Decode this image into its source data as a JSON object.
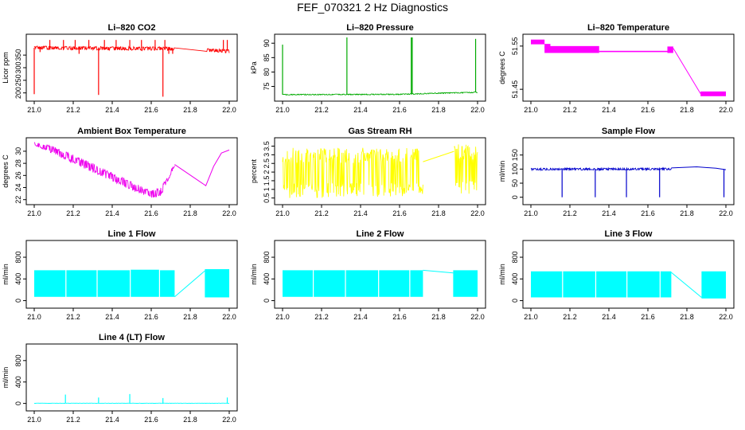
{
  "figure_title": "FEF_070321  2 Hz Diagnostics",
  "chart_data": [
    {
      "type": "line",
      "title": "Li–820 CO2",
      "ylabel": "Licor ppm",
      "xlabel": "",
      "xlim": [
        21.0,
        22.0
      ],
      "ylim": [
        180,
        420
      ],
      "yticks": [
        200,
        250,
        300,
        350
      ],
      "xticks": [
        21.0,
        21.2,
        21.4,
        21.6,
        21.8,
        22.0
      ],
      "color": "#ff0000",
      "band": [
        [
          21.0,
          372,
          386
        ],
        [
          21.72,
          368,
          382
        ],
        [
          22.0,
          358,
          372
        ]
      ],
      "gaps": [
        [
          21.72,
          21.88
        ]
      ],
      "spikes": [
        [
          21.0,
          195
        ],
        [
          21.03,
          362
        ],
        [
          21.08,
          410
        ],
        [
          21.15,
          410
        ],
        [
          21.21,
          410
        ],
        [
          21.23,
          355
        ],
        [
          21.28,
          410
        ],
        [
          21.33,
          192
        ],
        [
          21.36,
          410
        ],
        [
          21.42,
          410
        ],
        [
          21.49,
          410
        ],
        [
          21.55,
          410
        ],
        [
          21.62,
          410
        ],
        [
          21.66,
          185
        ],
        [
          21.67,
          410
        ],
        [
          21.69,
          355
        ],
        [
          21.71,
          355
        ],
        [
          21.97,
          410
        ],
        [
          21.99,
          410
        ]
      ]
    },
    {
      "type": "line",
      "title": "Li–820 Pressure",
      "ylabel": "kPa",
      "xlabel": "",
      "xlim": [
        21.0,
        22.0
      ],
      "ylim": [
        71,
        92
      ],
      "yticks": [
        75,
        80,
        85,
        90
      ],
      "xticks": [
        21.0,
        21.2,
        21.4,
        21.6,
        21.8,
        22.0
      ],
      "color": "#00aa00",
      "band": [
        [
          21.0,
          72.0,
          72.3
        ],
        [
          21.6,
          72.1,
          72.4
        ],
        [
          21.8,
          72.5,
          72.8
        ],
        [
          22.0,
          72.8,
          73.1
        ]
      ],
      "gaps": [],
      "spikes": [
        [
          21.0,
          89.5
        ],
        [
          21.33,
          92
        ],
        [
          21.66,
          92
        ],
        [
          21.665,
          92
        ],
        [
          21.99,
          91.5
        ]
      ]
    },
    {
      "type": "line",
      "title": "Li–820 Temperature",
      "ylabel": "degrees C",
      "xlabel": "",
      "xlim": [
        21.0,
        22.0
      ],
      "ylim": [
        51.43,
        51.57
      ],
      "yticks": [
        51.45,
        51.55
      ],
      "xticks": [
        21.0,
        21.2,
        21.4,
        21.6,
        21.8,
        22.0
      ],
      "color": "#ff00ff",
      "steps": [
        [
          21.0,
          21.07,
          51.565,
          51.555
        ],
        [
          21.07,
          21.1,
          51.545,
          51.555
        ],
        [
          21.07,
          21.35,
          51.535,
          51.55
        ],
        [
          21.35,
          21.7,
          51.537,
          51.539
        ],
        [
          21.7,
          21.73,
          51.535,
          51.549
        ],
        [
          21.87,
          22.0,
          51.435,
          51.445
        ]
      ],
      "ramp": [
        [
          21.73,
          51.545
        ],
        [
          21.87,
          51.44
        ]
      ]
    },
    {
      "type": "line",
      "title": "Ambient Box Temperature",
      "ylabel": "degrees C",
      "xlabel": "",
      "xlim": [
        21.0,
        22.0
      ],
      "ylim": [
        21.7,
        31.7
      ],
      "yticks": [
        22,
        24,
        26,
        28,
        30
      ],
      "xticks": [
        21.0,
        21.2,
        21.4,
        21.6,
        21.8,
        22.0
      ],
      "color": "#ee00ee",
      "band": [
        [
          21.0,
          31.0,
          31.5
        ],
        [
          21.1,
          29.5,
          30.8
        ],
        [
          21.3,
          26.5,
          28.0
        ],
        [
          21.5,
          23.5,
          25.0
        ],
        [
          21.6,
          22.3,
          23.5
        ],
        [
          21.65,
          22.5,
          24.0
        ],
        [
          21.72,
          27.5,
          28.0
        ]
      ],
      "gaps": [
        [
          21.72,
          21.88
        ]
      ],
      "line": [
        [
          21.72,
          27.8
        ],
        [
          21.88,
          24.3
        ],
        [
          21.92,
          27.5
        ],
        [
          21.96,
          29.7
        ],
        [
          22.0,
          30.2
        ]
      ],
      "spikes": []
    },
    {
      "type": "line",
      "title": "Gas Stream RH",
      "ylabel": "percent",
      "xlabel": "",
      "xlim": [
        21.0,
        22.0
      ],
      "ylim": [
        0.3,
        3.8
      ],
      "yticks": [
        0.5,
        1.0,
        1.5,
        2.0,
        2.5,
        3.0,
        3.5
      ],
      "xticks": [
        21.0,
        21.2,
        21.4,
        21.6,
        21.8,
        22.0
      ],
      "color": "#ffff00",
      "band": [
        [
          21.0,
          0.5,
          3.4
        ],
        [
          21.72,
          0.5,
          3.4
        ]
      ],
      "band2": [
        [
          21.88,
          0.5,
          3.6
        ],
        [
          22.0,
          0.6,
          3.6
        ]
      ],
      "gaps": [],
      "line": [
        [
          21.72,
          2.6
        ],
        [
          21.88,
          3.2
        ]
      ],
      "spikes": []
    },
    {
      "type": "line",
      "title": "Sample Flow",
      "ylabel": "ml/min",
      "xlabel": "",
      "xlim": [
        21.0,
        22.0
      ],
      "ylim": [
        -15,
        200
      ],
      "yticks": [
        0,
        50,
        100,
        150
      ],
      "xticks": [
        21.0,
        21.2,
        21.4,
        21.6,
        21.8,
        22.0
      ],
      "color": "#0000cc",
      "band": [
        [
          21.0,
          96,
          103
        ],
        [
          21.72,
          97,
          104
        ]
      ],
      "gaps": [],
      "line": [
        [
          21.72,
          104
        ],
        [
          21.85,
          108
        ],
        [
          21.95,
          103
        ],
        [
          22.0,
          98
        ]
      ],
      "spikes": [
        [
          21.16,
          0
        ],
        [
          21.33,
          0
        ],
        [
          21.49,
          0
        ],
        [
          21.66,
          0
        ],
        [
          21.99,
          0
        ]
      ]
    },
    {
      "type": "line",
      "title": "Line 1 Flow",
      "ylabel": "ml/min",
      "xlabel": "",
      "xlim": [
        21.0,
        22.0
      ],
      "ylim": [
        -80,
        1050
      ],
      "yticks": [
        0,
        400,
        800
      ],
      "xticks": [
        21.0,
        21.2,
        21.4,
        21.6,
        21.8,
        22.0
      ],
      "color": "#00ffff",
      "blocks": [
        [
          21.0,
          21.16,
          70,
          560
        ],
        [
          21.165,
          21.32,
          70,
          560
        ],
        [
          21.325,
          21.49,
          70,
          560
        ],
        [
          21.495,
          21.64,
          70,
          570
        ],
        [
          21.645,
          21.72,
          70,
          560
        ],
        [
          21.875,
          22.0,
          60,
          580
        ]
      ],
      "line": [
        [
          21.72,
          70
        ],
        [
          21.875,
          550
        ]
      ]
    },
    {
      "type": "line",
      "title": "Line 2 Flow",
      "ylabel": "ml/min",
      "xlabel": "",
      "xlim": [
        21.0,
        22.0
      ],
      "ylim": [
        -80,
        1050
      ],
      "yticks": [
        0,
        400,
        800
      ],
      "xticks": [
        21.0,
        21.2,
        21.4,
        21.6,
        21.8,
        22.0
      ],
      "color": "#00ffff",
      "blocks": [
        [
          21.0,
          21.155,
          70,
          560
        ],
        [
          21.16,
          21.32,
          70,
          560
        ],
        [
          21.325,
          21.49,
          70,
          560
        ],
        [
          21.495,
          21.65,
          70,
          560
        ],
        [
          21.655,
          21.72,
          70,
          560
        ],
        [
          21.875,
          22.0,
          70,
          560
        ]
      ],
      "line": [
        [
          21.72,
          560
        ],
        [
          21.875,
          510
        ]
      ]
    },
    {
      "type": "line",
      "title": "Line 3 Flow",
      "ylabel": "ml/min",
      "xlabel": "",
      "xlim": [
        21.0,
        22.0
      ],
      "ylim": [
        -80,
        1050
      ],
      "yticks": [
        0,
        400,
        800
      ],
      "xticks": [
        21.0,
        21.2,
        21.4,
        21.6,
        21.8,
        22.0
      ],
      "color": "#00ffff",
      "blocks": [
        [
          21.0,
          21.16,
          60,
          540
        ],
        [
          21.165,
          21.33,
          60,
          540
        ],
        [
          21.335,
          21.49,
          60,
          540
        ],
        [
          21.495,
          21.66,
          60,
          540
        ],
        [
          21.665,
          21.72,
          60,
          540
        ],
        [
          21.875,
          22.0,
          40,
          540
        ]
      ],
      "line": [
        [
          21.72,
          520
        ],
        [
          21.875,
          60
        ]
      ]
    },
    {
      "type": "line",
      "title": "Line 4 (LT) Flow",
      "ylabel": "ml/min",
      "xlabel": "",
      "xlim": [
        21.0,
        22.0
      ],
      "ylim": [
        -80,
        1050
      ],
      "yticks": [
        0,
        400,
        800
      ],
      "xticks": [
        21.0,
        21.2,
        21.4,
        21.6,
        21.8,
        22.0
      ],
      "color": "#00ffff",
      "band": [
        [
          21.0,
          2,
          6
        ],
        [
          22.0,
          2,
          6
        ]
      ],
      "gaps": [],
      "spikes": [
        [
          21.16,
          165
        ],
        [
          21.33,
          110
        ],
        [
          21.49,
          175
        ],
        [
          21.66,
          100
        ],
        [
          21.99,
          110
        ]
      ]
    }
  ]
}
